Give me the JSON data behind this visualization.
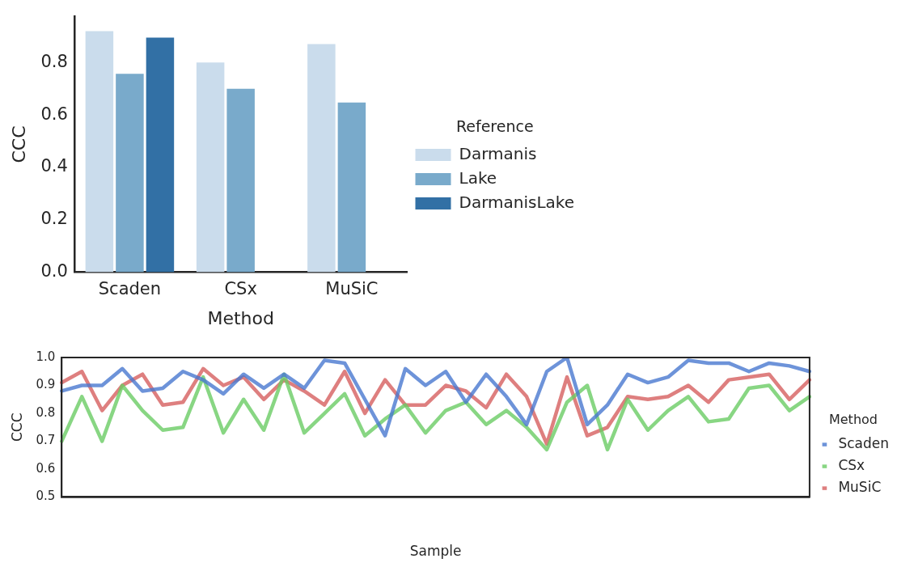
{
  "chart_data": [
    {
      "type": "bar",
      "xlabel": "Method",
      "ylabel": "CCC",
      "legend_title": "Reference",
      "legend": "right",
      "categories": [
        "Scaden",
        "CSx",
        "MuSiC"
      ],
      "series": [
        {
          "name": "Darmanis",
          "color": "#cadcec",
          "values": [
            0.92,
            0.8,
            0.87
          ]
        },
        {
          "name": "Lake",
          "color": "#79aacb",
          "values": [
            0.757,
            0.7,
            0.647
          ]
        },
        {
          "name": "DarmanisLake",
          "color": "#3270a5",
          "values": [
            0.895,
            null,
            null
          ]
        }
      ],
      "ylim": [
        0,
        0.975
      ],
      "yticks": [
        {
          "value": 0,
          "label": "0.0"
        },
        {
          "value": 0.2,
          "label": "0.2"
        },
        {
          "value": 0.4,
          "label": "0.4"
        },
        {
          "value": 0.6,
          "label": "0.6"
        },
        {
          "value": 0.8,
          "label": "0.8"
        }
      ]
    },
    {
      "type": "line",
      "xlabel": "Sample",
      "ylabel": "CCC",
      "legend_title": "Method",
      "legend": "right",
      "categories": [
        null,
        null,
        null,
        null,
        null,
        null,
        null,
        null,
        null,
        null,
        null,
        null,
        null,
        null,
        null,
        null,
        null,
        null,
        null,
        null,
        null,
        null,
        null,
        null,
        null,
        null,
        null,
        null,
        null,
        null,
        null,
        null,
        null,
        null,
        null,
        null,
        null,
        null
      ],
      "ylim": [
        0.5,
        1.0
      ],
      "yticks": [
        {
          "value": 0.5,
          "label": "0.5"
        },
        {
          "value": 0.6,
          "label": "0.6"
        },
        {
          "value": 0.7,
          "label": "0.7"
        },
        {
          "value": 0.8,
          "label": "0.8"
        },
        {
          "value": 0.9,
          "label": "0.9"
        },
        {
          "value": 1.0,
          "label": "1.0"
        }
      ],
      "series": [
        {
          "name": "Scaden",
          "color": "#4878d0",
          "values": [
            0.88,
            0.9,
            0.9,
            0.96,
            0.88,
            0.89,
            0.95,
            0.92,
            0.87,
            0.94,
            0.89,
            0.94,
            0.89,
            0.99,
            0.98,
            0.85,
            0.72,
            0.96,
            0.9,
            0.95,
            0.84,
            0.94,
            0.86,
            0.76,
            0.95,
            1.0,
            0.76,
            0.83,
            0.94,
            0.91,
            0.93,
            0.99,
            0.98,
            0.98,
            0.95,
            0.98,
            0.97,
            0.95
          ]
        },
        {
          "name": "CSx",
          "color": "#6acc64",
          "values": [
            0.7,
            0.86,
            0.7,
            0.9,
            0.81,
            0.74,
            0.75,
            0.93,
            0.73,
            0.85,
            0.74,
            0.94,
            0.73,
            0.8,
            0.87,
            0.72,
            0.78,
            0.83,
            0.73,
            0.81,
            0.84,
            0.76,
            0.81,
            0.75,
            0.67,
            0.84,
            0.9,
            0.67,
            0.85,
            0.74,
            0.81,
            0.86,
            0.77,
            0.78,
            0.89,
            0.9,
            0.81,
            0.86
          ]
        },
        {
          "name": "MuSiC",
          "color": "#d65f5f",
          "values": [
            0.91,
            0.95,
            0.81,
            0.9,
            0.94,
            0.83,
            0.84,
            0.96,
            0.9,
            0.93,
            0.85,
            0.92,
            0.88,
            0.83,
            0.95,
            0.8,
            0.92,
            0.83,
            0.83,
            0.9,
            0.88,
            0.82,
            0.94,
            0.86,
            0.69,
            0.93,
            0.72,
            0.75,
            0.86,
            0.85,
            0.86,
            0.9,
            0.84,
            0.92,
            0.93,
            0.94,
            0.85,
            0.92
          ]
        }
      ]
    }
  ]
}
